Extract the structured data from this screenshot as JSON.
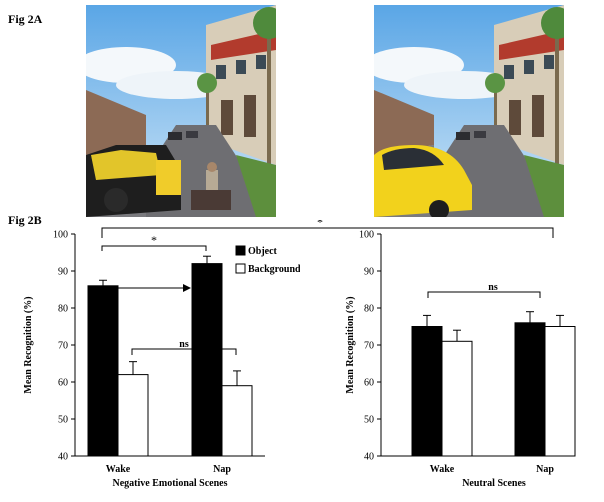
{
  "fig_a_label": "Fig 2A",
  "fig_b_label": "Fig 2B",
  "colors": {
    "object": "#000000",
    "background": "#ffffff",
    "sky": "#8ec3ea",
    "road": "#6e6e72"
  },
  "chart_data": [
    {
      "type": "bar",
      "categories": [
        "Wake",
        "Nap"
      ],
      "series": [
        {
          "name": "Object",
          "values": [
            86,
            92
          ],
          "errors": [
            1.5,
            2
          ]
        },
        {
          "name": "Background",
          "values": [
            62,
            59
          ],
          "errors": [
            3.5,
            4
          ]
        }
      ],
      "xlabel": "Negative Emotional Scenes",
      "ylabel": "Mean Recognition (%)",
      "ylim": [
        40,
        100
      ],
      "yticks": [
        40,
        50,
        60,
        70,
        80,
        90,
        100
      ],
      "legend": "top-center",
      "annotations": [
        {
          "text": "*",
          "between": "Object Wake vs Object Nap"
        },
        {
          "text": "ns",
          "between": "Background Wake vs Background Nap"
        }
      ]
    },
    {
      "type": "bar",
      "categories": [
        "Wake",
        "Nap"
      ],
      "series": [
        {
          "name": "Object",
          "values": [
            75,
            76
          ],
          "errors": [
            3,
            3
          ]
        },
        {
          "name": "Background",
          "values": [
            71,
            75
          ],
          "errors": [
            3,
            3
          ]
        }
      ],
      "xlabel": "Neutral Scenes",
      "ylabel": "Mean Recognition (%)",
      "ylim": [
        40,
        100
      ],
      "yticks": [
        40,
        50,
        60,
        70,
        80,
        90,
        100
      ],
      "annotations": [
        {
          "text": "ns",
          "between": "Wake vs Nap"
        }
      ]
    }
  ],
  "cross_annotation": "*"
}
